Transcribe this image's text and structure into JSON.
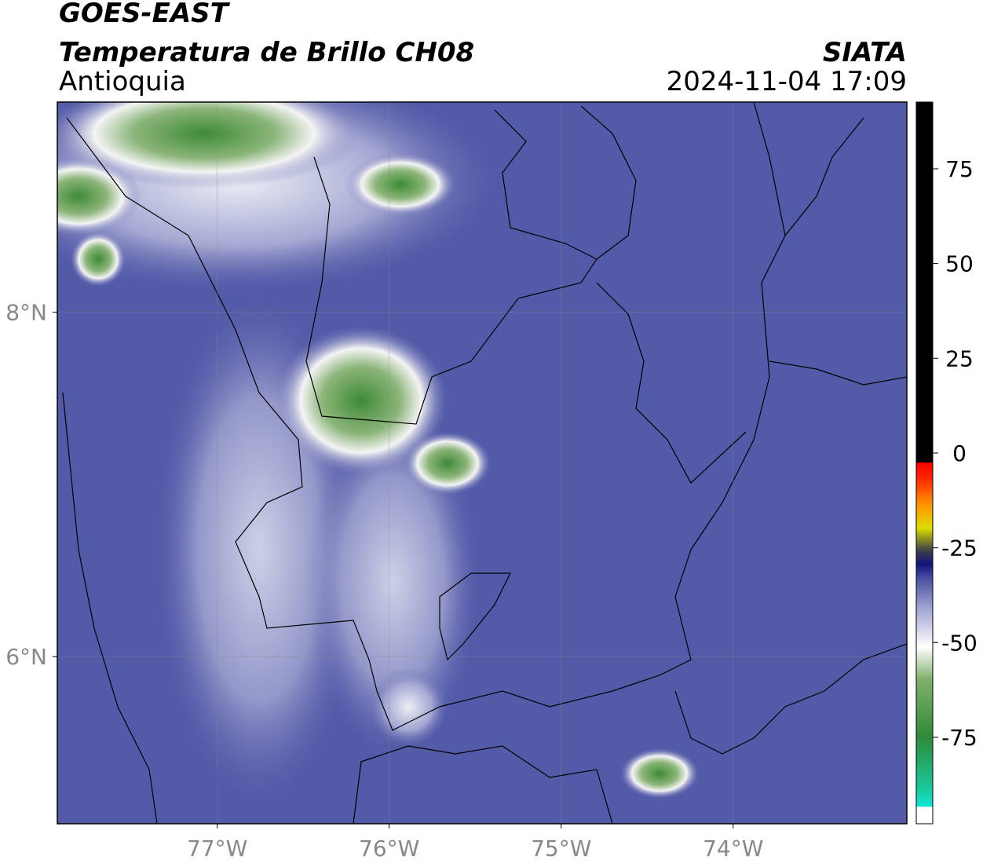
{
  "header": {
    "title": "GOES-EAST",
    "subtitle": "Temperatura de Brillo CH08",
    "region": "Antioquia",
    "source": "SIATA",
    "timestamp": "2024-11-04 17:09"
  },
  "map": {
    "xlim": [
      -77.93,
      -72.99
    ],
    "ylim": [
      5.03,
      9.22
    ],
    "xticks": [
      {
        "value": -77,
        "label": "77°W"
      },
      {
        "value": -76,
        "label": "76°W"
      },
      {
        "value": -75,
        "label": "75°W"
      },
      {
        "value": -74,
        "label": "74°W"
      }
    ],
    "yticks": [
      {
        "value": 8,
        "label": "8°N"
      },
      {
        "value": 6,
        "label": "6°N"
      }
    ],
    "grid": true
  },
  "colorbar": {
    "lim": [
      -97.8,
      92.6
    ],
    "ticks": [
      75,
      50,
      25,
      0,
      -25,
      -50,
      -75
    ]
  }
}
